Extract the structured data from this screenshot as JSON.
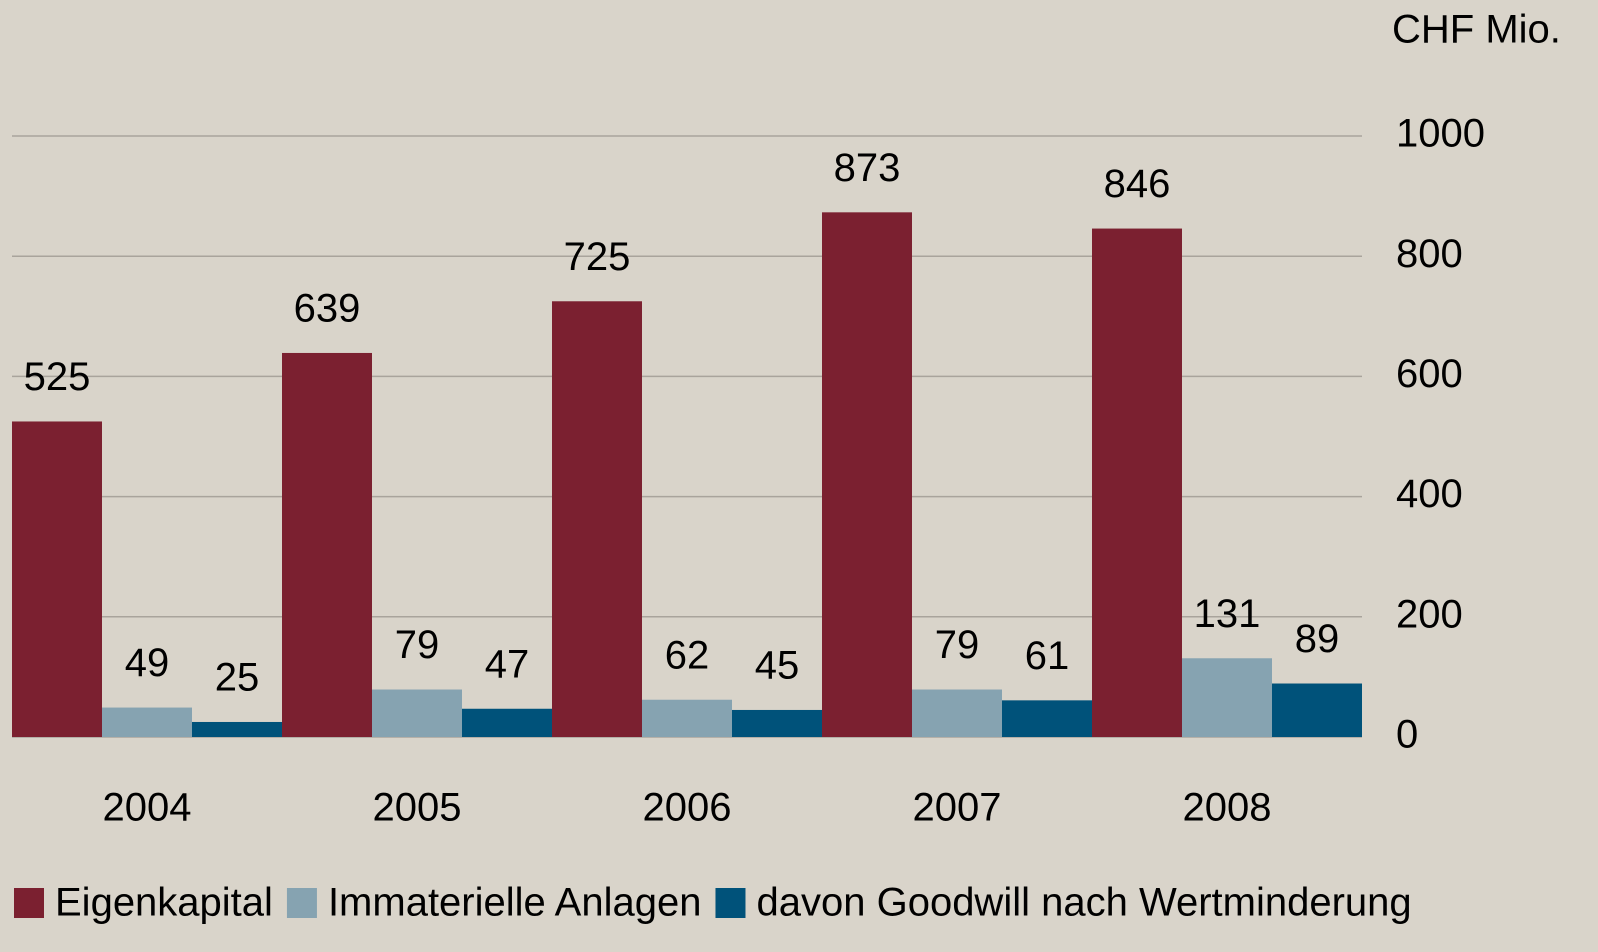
{
  "chart_data": {
    "type": "bar",
    "unit_label": "CHF Mio.",
    "categories": [
      "2004",
      "2005",
      "2006",
      "2007",
      "2008"
    ],
    "series": [
      {
        "name": "Eigenkapital",
        "color": "#7b2030",
        "values": [
          525,
          639,
          725,
          873,
          846
        ]
      },
      {
        "name": "Immaterielle Anlagen",
        "color": "#86a3b1",
        "values": [
          49,
          79,
          62,
          79,
          131
        ]
      },
      {
        "name": "davon Goodwill nach Wertminderung",
        "color": "#00527a",
        "values": [
          25,
          47,
          45,
          61,
          89
        ]
      }
    ],
    "ylim": [
      0,
      1000
    ],
    "yticks": [
      0,
      200,
      400,
      600,
      800,
      1000
    ],
    "grid": true,
    "y_axis_side": "right",
    "legend": "bottom"
  }
}
